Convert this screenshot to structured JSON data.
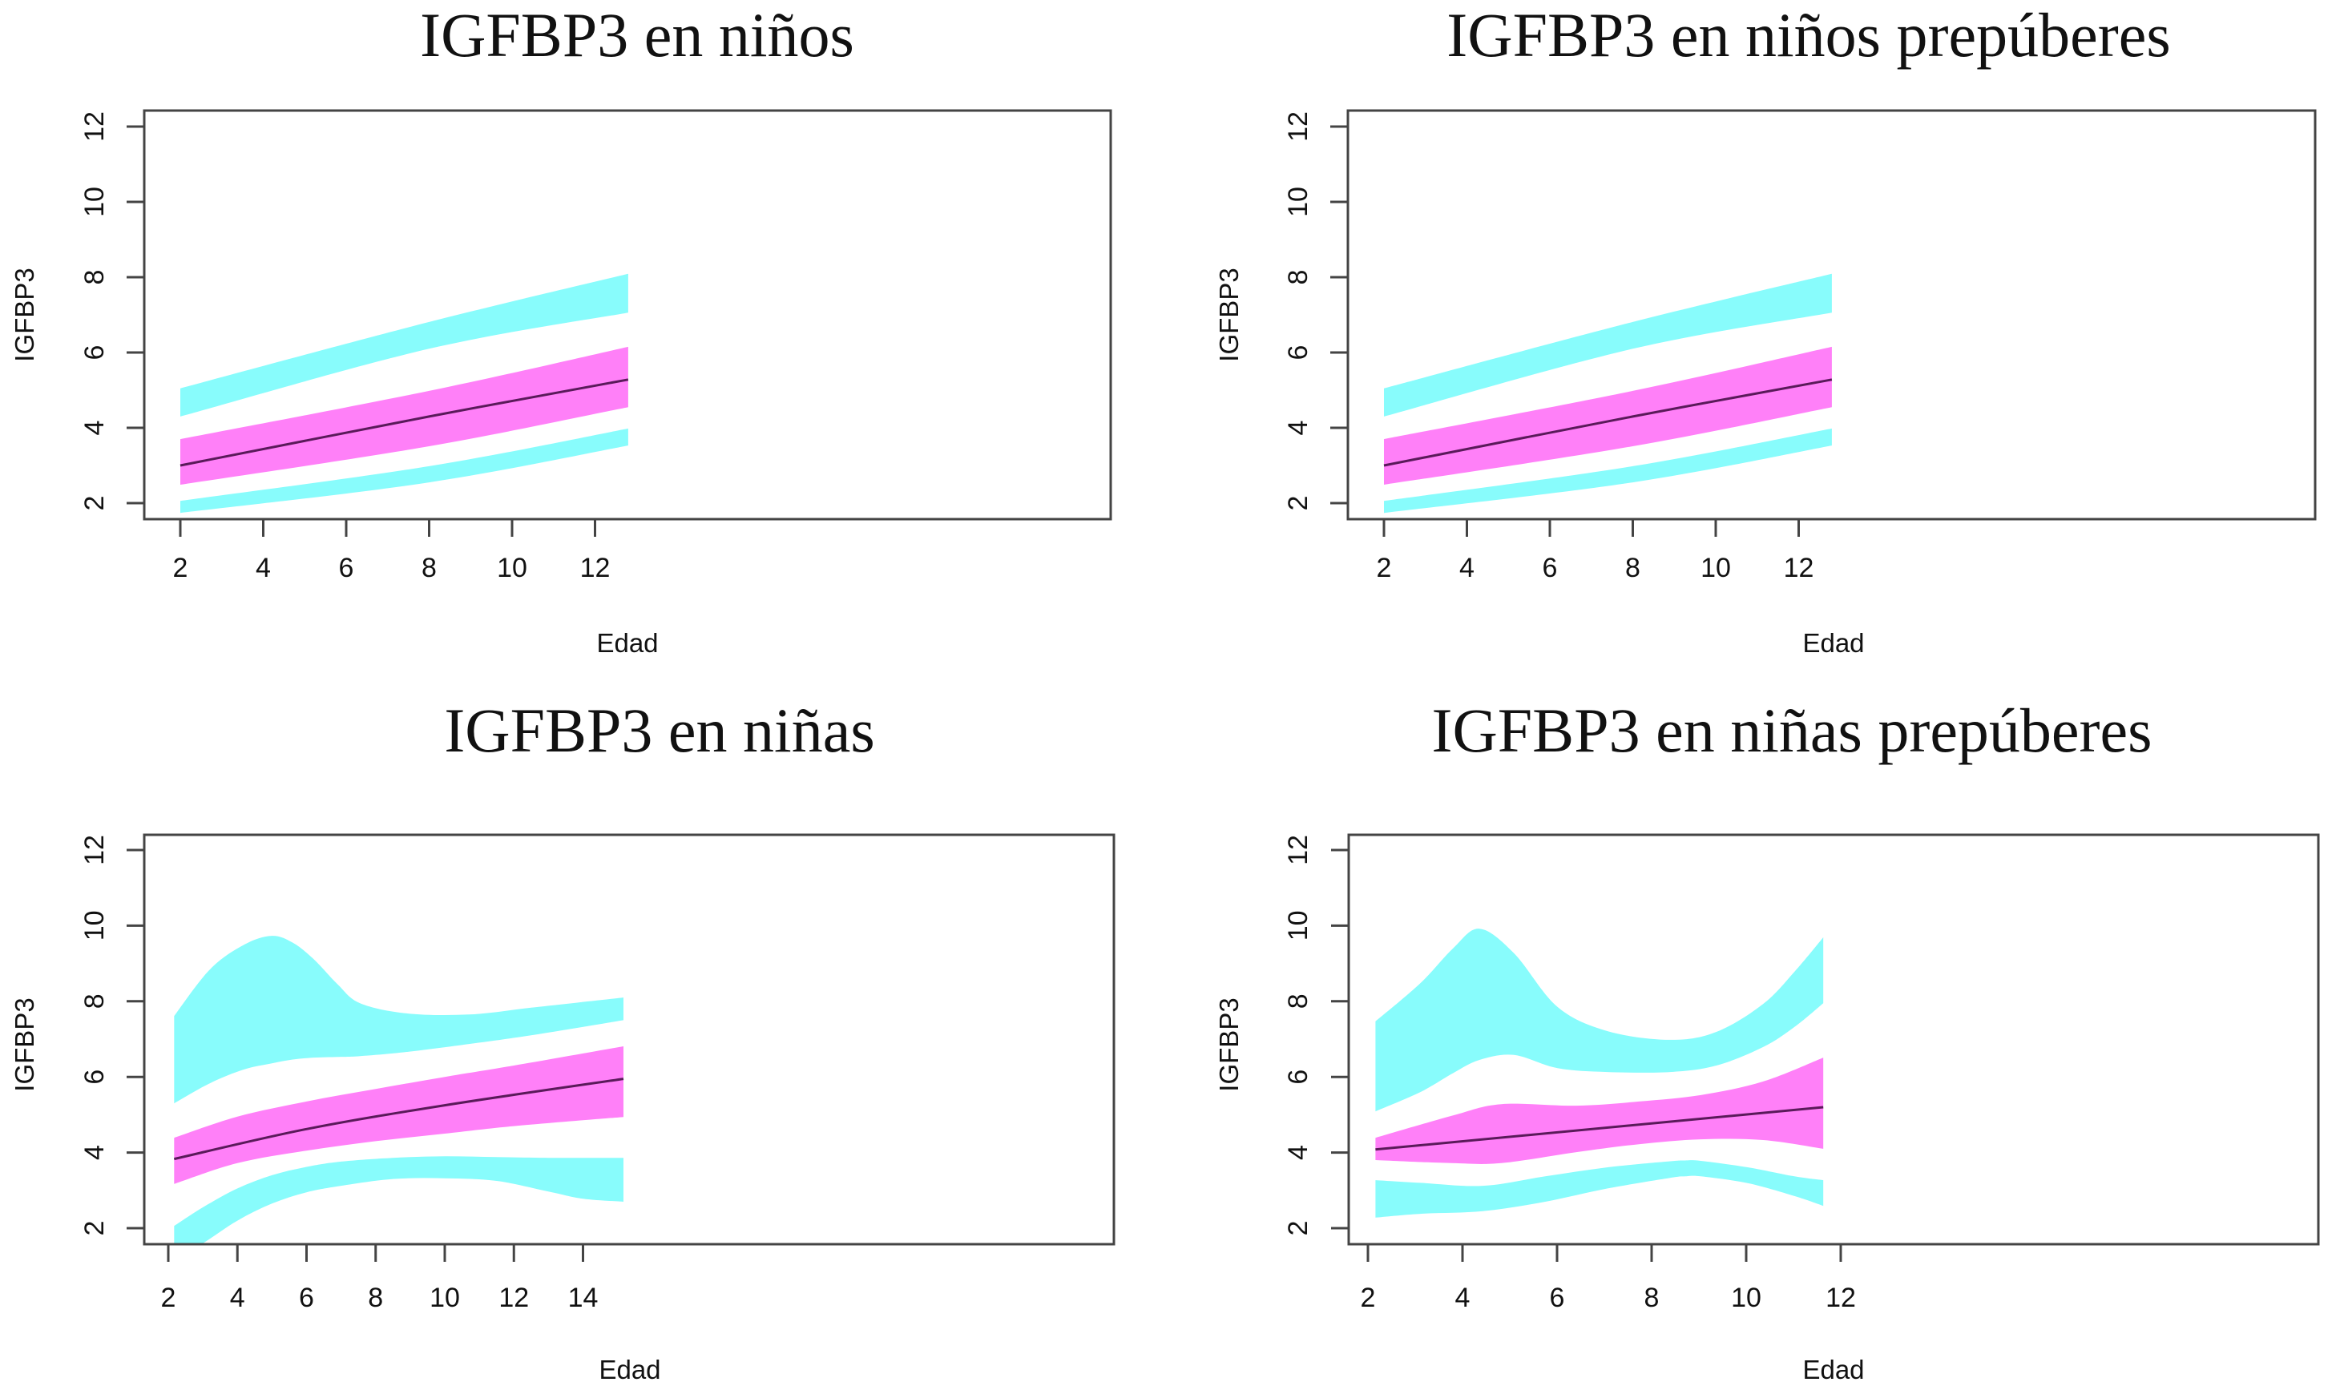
{
  "colors": {
    "outer_band": "#88FCFC",
    "inner_band": "#FF80F8",
    "mean_line": "#5A1A5A",
    "frame": "#444444"
  },
  "chart_data": [
    {
      "id": "ninos",
      "type": "area",
      "title": "IGFBP3 en niños",
      "xlabel": "Edad",
      "ylabel": "IGFBP3",
      "xticks": [
        2,
        4,
        6,
        8,
        10,
        12
      ],
      "yticks": [
        2,
        4,
        6,
        8,
        10,
        12
      ],
      "xlim": [
        1.55,
        13.2
      ],
      "ylim": [
        1.6,
        12.4
      ],
      "grid": false,
      "legend": "none",
      "series": [
        {
          "name": "outer_upper_band",
          "x": [
            2,
            8,
            12.8
          ],
          "upper": [
            5.05,
            6.81,
            8.09
          ],
          "lower": [
            4.3,
            6.1,
            7.06
          ]
        },
        {
          "name": "inner_band",
          "x": [
            2,
            8,
            12.8
          ],
          "upper": [
            3.7,
            4.98,
            6.15
          ],
          "lower": [
            2.49,
            3.51,
            4.55
          ]
        },
        {
          "name": "outer_lower_band",
          "x": [
            2,
            8,
            12.8
          ],
          "upper": [
            2.06,
            2.98,
            3.98
          ],
          "lower": [
            1.74,
            2.55,
            3.53
          ]
        },
        {
          "name": "mean",
          "x": [
            2,
            8,
            12.8
          ],
          "y": [
            3.0,
            4.3,
            5.28
          ]
        }
      ]
    },
    {
      "id": "ninos-prepuberes",
      "type": "area",
      "title": "IGFBP3 en niños prepúberes",
      "xlabel": "Edad",
      "ylabel": "IGFBP3",
      "xticks": [
        2,
        4,
        6,
        8,
        10,
        12
      ],
      "yticks": [
        2,
        4,
        6,
        8,
        10,
        12
      ],
      "xlim": [
        1.55,
        13.2
      ],
      "ylim": [
        1.6,
        12.4
      ],
      "grid": false,
      "legend": "none",
      "series": [
        {
          "name": "outer_upper_band",
          "x": [
            2,
            8,
            12.8
          ],
          "upper": [
            5.05,
            6.81,
            8.09
          ],
          "lower": [
            4.3,
            6.1,
            7.06
          ]
        },
        {
          "name": "inner_band",
          "x": [
            2,
            8,
            12.8
          ],
          "upper": [
            3.7,
            4.98,
            6.15
          ],
          "lower": [
            2.49,
            3.51,
            4.55
          ]
        },
        {
          "name": "outer_lower_band",
          "x": [
            2,
            8,
            12.8
          ],
          "upper": [
            2.06,
            2.98,
            3.98
          ],
          "lower": [
            1.74,
            2.55,
            3.53
          ]
        },
        {
          "name": "mean",
          "x": [
            2,
            8,
            12.8
          ],
          "y": [
            3.0,
            4.3,
            5.28
          ]
        }
      ]
    },
    {
      "id": "ninas",
      "type": "area",
      "title": "IGFBP3 en niñas",
      "xlabel": "Edad",
      "ylabel": "IGFBP3",
      "xticks": [
        2,
        4,
        6,
        8,
        10,
        12,
        14
      ],
      "yticks": [
        2,
        4,
        6,
        8,
        10,
        12
      ],
      "xlim": [
        1.65,
        15.7
      ],
      "ylim": [
        1.6,
        12.4
      ],
      "grid": false,
      "legend": "none",
      "series": [
        {
          "name": "outer_upper_band",
          "x": [
            2.17,
            3.2,
            4.2,
            5.0,
            5.6,
            6.2,
            6.9,
            7.55,
            8.9,
            10.7,
            12.5,
            15.17
          ],
          "upper": [
            7.61,
            8.84,
            9.5,
            9.73,
            9.55,
            9.12,
            8.45,
            7.95,
            7.68,
            7.65,
            7.83,
            8.1
          ],
          "lower": [
            5.3,
            5.83,
            6.2,
            6.36,
            6.46,
            6.51,
            6.53,
            6.55,
            6.66,
            6.87,
            7.1,
            7.5
          ]
        },
        {
          "name": "inner_band",
          "x": [
            2.17,
            4.0,
            6.0,
            8.0,
            10.0,
            12.0,
            15.17
          ],
          "upper": [
            4.39,
            4.95,
            5.35,
            5.68,
            6.0,
            6.3,
            6.81
          ],
          "lower": [
            3.17,
            3.72,
            4.05,
            4.3,
            4.5,
            4.7,
            4.94
          ]
        },
        {
          "name": "outer_lower_band",
          "x": [
            2.17,
            3.0,
            4.0,
            5.0,
            6.0,
            7.0,
            8.5,
            10.0,
            11.5,
            13.0,
            14.0,
            15.17
          ],
          "upper": [
            2.06,
            2.55,
            3.05,
            3.4,
            3.62,
            3.76,
            3.86,
            3.9,
            3.88,
            3.86,
            3.86,
            3.86
          ],
          "lower": [
            1.2,
            1.6,
            2.2,
            2.65,
            2.95,
            3.12,
            3.3,
            3.32,
            3.25,
            2.97,
            2.78,
            2.7
          ]
        },
        {
          "name": "mean",
          "x": [
            2.17,
            6.0,
            10.0,
            15.17
          ],
          "y": [
            3.83,
            4.62,
            5.25,
            5.95
          ]
        }
      ]
    },
    {
      "id": "ninas-prepuberes",
      "type": "area",
      "title": "IGFBP3 en niñas prepúberes",
      "xlabel": "Edad",
      "ylabel": "IGFBP3",
      "xticks": [
        2,
        4,
        6,
        8,
        10,
        12
      ],
      "yticks": [
        2,
        4,
        6,
        8,
        10,
        12
      ],
      "xlim": [
        1.65,
        12.05
      ],
      "ylim": [
        1.6,
        12.4
      ],
      "grid": false,
      "legend": "none",
      "series": [
        {
          "name": "outer_upper_band",
          "x": [
            2.16,
            3.11,
            3.8,
            4.36,
            5.09,
            6.01,
            7.07,
            8.39,
            9.37,
            10.36,
            11.02,
            11.63
          ],
          "upper": [
            7.47,
            8.48,
            9.4,
            9.92,
            9.27,
            7.85,
            7.21,
            6.98,
            7.19,
            7.93,
            8.78,
            9.69
          ],
          "lower": [
            5.09,
            5.6,
            6.1,
            6.45,
            6.58,
            6.23,
            6.13,
            6.13,
            6.3,
            6.79,
            7.32,
            7.95
          ]
        },
        {
          "name": "inner_band",
          "x": [
            2.16,
            3.77,
            4.82,
            6.41,
            7.73,
            9.04,
            10.36,
            11.63
          ],
          "upper": [
            4.39,
            4.97,
            5.28,
            5.24,
            5.35,
            5.52,
            5.88,
            6.51
          ],
          "lower": [
            3.8,
            3.72,
            3.72,
            4.01,
            4.22,
            4.35,
            4.33,
            4.1
          ]
        },
        {
          "name": "outer_lower_band",
          "x": [
            2.16,
            3.11,
            4.43,
            5.75,
            7.07,
            8.39,
            8.71,
            9.04,
            10.03,
            11.02,
            11.63
          ],
          "upper": [
            3.27,
            3.2,
            3.12,
            3.37,
            3.61,
            3.77,
            3.79,
            3.78,
            3.61,
            3.37,
            3.27
          ],
          "lower": [
            2.28,
            2.38,
            2.45,
            2.7,
            3.05,
            3.33,
            3.37,
            3.37,
            3.19,
            2.85,
            2.59
          ]
        },
        {
          "name": "mean",
          "x": [
            2.16,
            11.63
          ],
          "y": [
            4.08,
            5.2
          ]
        }
      ]
    }
  ]
}
